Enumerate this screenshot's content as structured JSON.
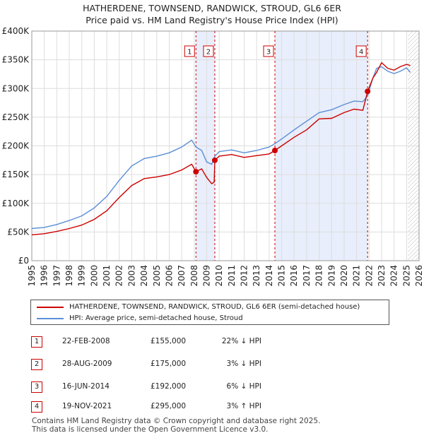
{
  "chart_data": {
    "type": "line",
    "title": "HATHERDENE, TOWNSEND, RANDWICK, STROUD, GL6 6ER",
    "subtitle": "Price paid vs. HM Land Registry's House Price Index (HPI)",
    "xlabel": "",
    "ylabel": "",
    "xlim": [
      1995,
      2026
    ],
    "ylim": [
      0,
      400000
    ],
    "yticks": [
      0,
      50000,
      100000,
      150000,
      200000,
      250000,
      300000,
      350000,
      400000
    ],
    "ytick_labels": [
      "£0",
      "£50K",
      "£100K",
      "£150K",
      "£200K",
      "£250K",
      "£300K",
      "£350K",
      "£400K"
    ],
    "xticks": [
      "1995",
      "1996",
      "1997",
      "1998",
      "1999",
      "2000",
      "2001",
      "2002",
      "2003",
      "2004",
      "2005",
      "2006",
      "2007",
      "2008",
      "2009",
      "2010",
      "2011",
      "2012",
      "2013",
      "2014",
      "2015",
      "2016",
      "2017",
      "2018",
      "2019",
      "2020",
      "2021",
      "2022",
      "2023",
      "2024",
      "2025",
      "2026"
    ],
    "grid": true,
    "series": [
      {
        "name": "HATHERDENE, TOWNSEND, RANDWICK, STROUD, GL6 6ER (semi-detached house)",
        "color": "#cc0000",
        "x": [
          1995.0,
          1996.0,
          1997.0,
          1998.0,
          1999.0,
          2000.0,
          2001.0,
          2002.0,
          2003.0,
          2004.0,
          2005.0,
          2006.0,
          2007.0,
          2007.8,
          2008.14,
          2008.6,
          2009.0,
          2009.4,
          2009.6,
          2009.65,
          2010.0,
          2011.0,
          2012.0,
          2013.0,
          2014.0,
          2014.46,
          2015.0,
          2016.0,
          2017.0,
          2018.0,
          2019.0,
          2020.0,
          2020.8,
          2021.5,
          2021.88,
          2022.3,
          2022.6,
          2023.0,
          2023.5,
          2024.0,
          2024.5,
          2025.0,
          2025.3
        ],
        "y": [
          45000,
          47000,
          51000,
          56000,
          62000,
          72000,
          87000,
          110000,
          131000,
          143000,
          146000,
          150000,
          158000,
          168000,
          155000,
          160000,
          145000,
          134000,
          137000,
          175000,
          182000,
          185000,
          180000,
          183000,
          186000,
          192000,
          200000,
          215000,
          228000,
          247000,
          248000,
          258000,
          264000,
          262000,
          295000,
          318000,
          328000,
          345000,
          335000,
          332000,
          338000,
          342000,
          340000
        ]
      },
      {
        "name": "HPI: Average price, semi-detached house, Stroud",
        "color": "#5b8fd6",
        "x": [
          1995.0,
          1996.0,
          1997.0,
          1998.0,
          1999.0,
          2000.0,
          2001.0,
          2002.0,
          2003.0,
          2004.0,
          2005.0,
          2006.0,
          2007.0,
          2007.8,
          2008.14,
          2008.6,
          2009.0,
          2009.4,
          2009.65,
          2010.0,
          2011.0,
          2012.0,
          2013.0,
          2014.0,
          2014.46,
          2015.0,
          2016.0,
          2017.0,
          2018.0,
          2019.0,
          2020.0,
          2020.8,
          2021.5,
          2021.88,
          2022.3,
          2022.6,
          2023.0,
          2023.5,
          2024.0,
          2024.5,
          2025.0,
          2025.3
        ],
        "y": [
          56000,
          58000,
          63000,
          70000,
          78000,
          92000,
          112000,
          140000,
          165000,
          178000,
          182000,
          188000,
          198000,
          210000,
          198000,
          192000,
          172000,
          168000,
          182000,
          190000,
          193000,
          188000,
          192000,
          198000,
          204000,
          212000,
          228000,
          243000,
          258000,
          263000,
          272000,
          278000,
          277000,
          287000,
          318000,
          335000,
          338000,
          330000,
          326000,
          330000,
          336000,
          328000
        ]
      }
    ],
    "sales": [
      {
        "label": "1",
        "x": 2008.14,
        "y": 155000
      },
      {
        "label": "2",
        "x": 2009.65,
        "y": 175000
      },
      {
        "label": "3",
        "x": 2014.46,
        "y": 192000
      },
      {
        "label": "4",
        "x": 2021.88,
        "y": 295000
      }
    ],
    "shaded_periods": [
      [
        2008.14,
        2009.65
      ],
      [
        2014.46,
        2021.88
      ]
    ],
    "future_from": 2025.1
  },
  "legend": {
    "property": "HATHERDENE, TOWNSEND, RANDWICK, STROUD, GL6 6ER (semi-detached house)",
    "hpi": "HPI: Average price, semi-detached house, Stroud"
  },
  "transactions": [
    {
      "num": "1",
      "date": "22-FEB-2008",
      "price": "£155,000",
      "hpi": "22% ↓ HPI"
    },
    {
      "num": "2",
      "date": "28-AUG-2009",
      "price": "£175,000",
      "hpi": "3% ↓ HPI"
    },
    {
      "num": "3",
      "date": "16-JUN-2014",
      "price": "£192,000",
      "hpi": "6% ↓ HPI"
    },
    {
      "num": "4",
      "date": "19-NOV-2021",
      "price": "£295,000",
      "hpi": "3% ↑ HPI"
    }
  ],
  "footer": {
    "line1": "Contains HM Land Registry data © Crown copyright and database right 2025.",
    "line2": "This data is licensed under the Open Government Licence v3.0."
  }
}
